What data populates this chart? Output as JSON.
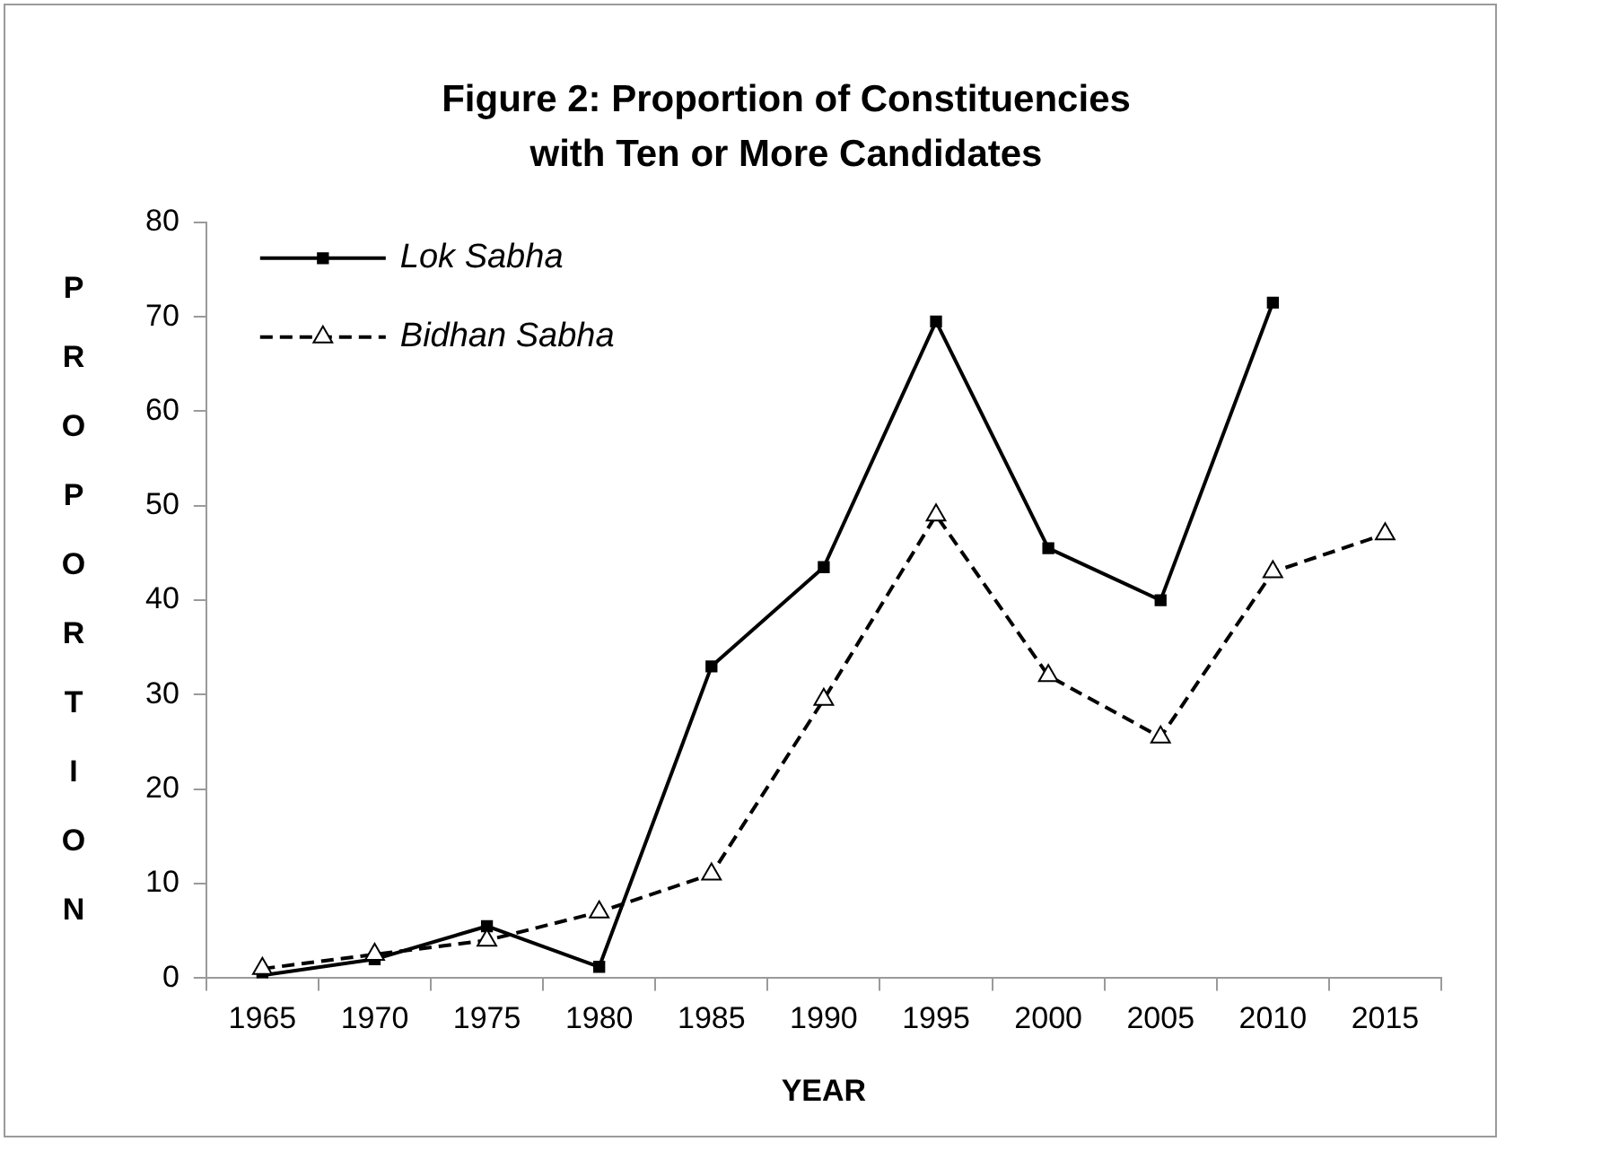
{
  "chart_data": {
    "type": "line",
    "title": "Figure 2: Proportion of Constituencies\nwith Ten or More Candidates",
    "xlabel": "YEAR",
    "ylabel": "PROPORTION",
    "categories": [
      "1965",
      "1970",
      "1975",
      "1980",
      "1985",
      "1990",
      "1995",
      "2000",
      "2005",
      "2010",
      "2015"
    ],
    "series": [
      {
        "name": "Lok Sabha",
        "color": "#000000",
        "marker": "square",
        "line_style": "solid",
        "values": [
          0.3,
          2,
          5.5,
          1.2,
          33,
          43.5,
          69.5,
          45.5,
          40,
          71.5,
          null
        ]
      },
      {
        "name": "Bidhan Sabha",
        "color": "#000000",
        "marker": "triangle",
        "line_style": "dashed",
        "values": [
          1,
          2.5,
          4,
          7,
          11,
          29.5,
          49,
          32,
          25.5,
          43,
          47
        ]
      }
    ],
    "ylim": [
      0,
      80
    ],
    "yticks": [
      0,
      10,
      20,
      30,
      40,
      50,
      60,
      70,
      80
    ],
    "grid": false,
    "legend": "top left"
  }
}
